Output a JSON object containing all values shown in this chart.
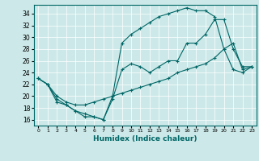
{
  "xlabel": "Humidex (Indice chaleur)",
  "bg_color": "#cce8e8",
  "line_color": "#006666",
  "xlim": [
    -0.5,
    23.5
  ],
  "ylim": [
    15,
    35.5
  ],
  "xticks": [
    0,
    1,
    2,
    3,
    4,
    5,
    6,
    7,
    8,
    9,
    10,
    11,
    12,
    13,
    14,
    15,
    16,
    17,
    18,
    19,
    20,
    21,
    22,
    23
  ],
  "yticks": [
    16,
    18,
    20,
    22,
    24,
    26,
    28,
    30,
    32,
    34
  ],
  "line1_x": [
    0,
    1,
    2,
    3,
    4,
    5,
    6,
    7,
    8,
    9,
    10,
    11,
    12,
    13,
    14,
    15,
    16,
    17,
    18,
    19,
    20,
    21,
    22,
    23
  ],
  "line1_y": [
    23,
    22,
    19,
    18.5,
    17.5,
    16.5,
    16.5,
    16,
    19.5,
    24.5,
    25.5,
    25,
    24,
    25,
    26,
    26,
    29,
    29,
    30.5,
    33,
    33,
    28,
    25,
    25
  ],
  "line2_x": [
    0,
    1,
    2,
    3,
    4,
    5,
    6,
    7,
    8,
    9,
    10,
    11,
    12,
    13,
    14,
    15,
    16,
    17,
    18,
    19,
    20,
    21,
    22,
    23
  ],
  "line2_y": [
    23,
    22,
    19.5,
    18.5,
    17.5,
    17,
    16.5,
    16,
    20,
    29,
    30.5,
    31.5,
    32.5,
    33.5,
    34,
    34.5,
    35,
    34.5,
    34.5,
    33.5,
    28,
    24.5,
    24,
    25
  ],
  "line3_x": [
    0,
    1,
    2,
    3,
    4,
    5,
    6,
    7,
    8,
    9,
    10,
    11,
    12,
    13,
    14,
    15,
    16,
    17,
    18,
    19,
    20,
    21,
    22,
    23
  ],
  "line3_y": [
    23,
    22,
    20,
    19,
    18.5,
    18.5,
    19,
    19.5,
    20,
    20.5,
    21,
    21.5,
    22,
    22.5,
    23,
    24,
    24.5,
    25,
    25.5,
    26.5,
    28,
    29,
    24.5,
    25
  ]
}
